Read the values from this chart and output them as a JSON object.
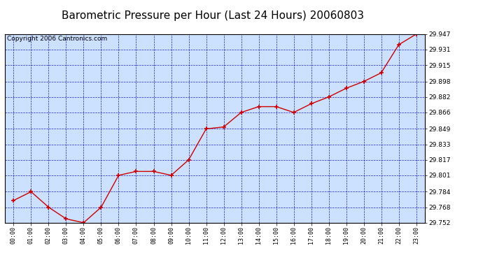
{
  "title": "Barometric Pressure per Hour (Last 24 Hours) 20060803",
  "copyright": "Copyright 2006 Cantronics.com",
  "x_labels": [
    "00:00",
    "01:00",
    "02:00",
    "03:00",
    "04:00",
    "05:00",
    "06:00",
    "07:00",
    "08:00",
    "09:00",
    "10:00",
    "11:00",
    "12:00",
    "13:00",
    "14:00",
    "15:00",
    "16:00",
    "17:00",
    "18:00",
    "19:00",
    "20:00",
    "21:00",
    "22:00",
    "23:00"
  ],
  "y_values": [
    29.775,
    29.784,
    29.768,
    29.756,
    29.752,
    29.768,
    29.801,
    29.805,
    29.805,
    29.801,
    29.817,
    29.849,
    29.851,
    29.866,
    29.872,
    29.872,
    29.866,
    29.875,
    29.882,
    29.891,
    29.898,
    29.907,
    29.936,
    29.947
  ],
  "y_ticks": [
    29.752,
    29.768,
    29.784,
    29.801,
    29.817,
    29.833,
    29.849,
    29.866,
    29.882,
    29.898,
    29.915,
    29.931,
    29.947
  ],
  "y_min": 29.752,
  "y_max": 29.947,
  "line_color": "#cc0000",
  "marker_color": "#cc0000",
  "bg_color": "#cce0ff",
  "grid_color": "#0000bb",
  "outer_bg": "#ffffff",
  "title_fontsize": 11,
  "copyright_fontsize": 6.5
}
